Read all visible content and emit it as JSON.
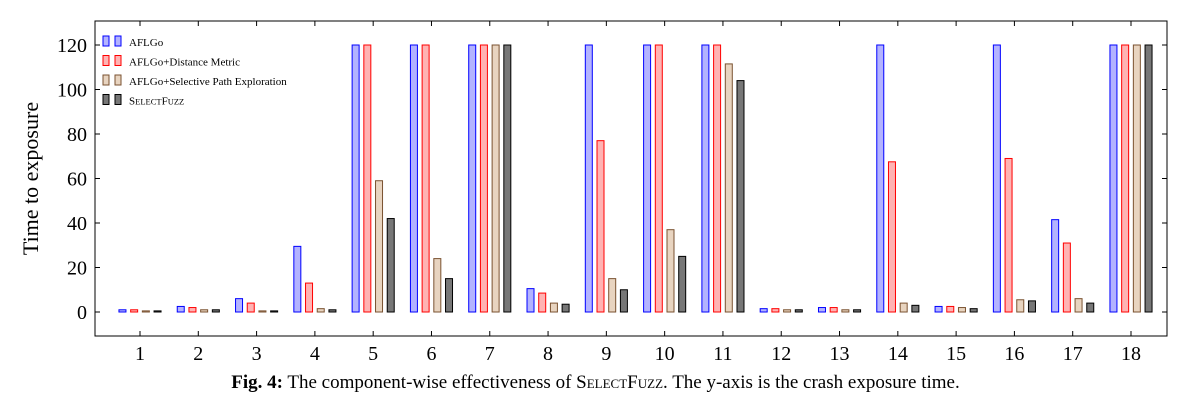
{
  "chart_data": {
    "type": "bar",
    "ylabel": "Time to exposure",
    "xlabel": "",
    "ylim": [
      0,
      120
    ],
    "yticks": [
      0,
      20,
      40,
      60,
      80,
      100,
      120
    ],
    "grid": false,
    "legend_position": "top-left",
    "categories": [
      "1",
      "2",
      "3",
      "4",
      "5",
      "6",
      "7",
      "8",
      "9",
      "10",
      "11",
      "12",
      "13",
      "14",
      "15",
      "16",
      "17",
      "18"
    ],
    "series": [
      {
        "name": "AFLGo",
        "color": "#b3b3ff",
        "stroke": "#0000ff",
        "values": [
          1,
          2.5,
          6,
          29.5,
          120,
          120,
          120,
          10.5,
          120,
          120,
          120,
          1.5,
          2,
          120,
          2.5,
          120,
          41.5,
          120
        ]
      },
      {
        "name": "AFLGo+Distance Metric",
        "color": "#ffb3b3",
        "stroke": "#ff0000",
        "values": [
          1,
          2,
          4,
          13,
          120,
          120,
          120,
          8.5,
          77,
          120,
          120,
          1.5,
          2,
          67.5,
          2.5,
          69,
          31,
          120
        ]
      },
      {
        "name": "AFLGo+Selective Path Exploration",
        "color": "#e8d4c0",
        "stroke": "#7a5230",
        "values": [
          0.5,
          1,
          0.5,
          1.5,
          59,
          24,
          120,
          4,
          15,
          37,
          111.5,
          1,
          1,
          4,
          2,
          5.5,
          6,
          120
        ]
      },
      {
        "name": "SelectFuzz",
        "name_prefix": "S",
        "name_sc1": "elect",
        "name_mid": "F",
        "name_sc2": "uzz",
        "color": "#777777",
        "stroke": "#000000",
        "values": [
          0.5,
          1,
          0.5,
          1,
          42,
          15,
          120,
          3.5,
          10,
          25,
          104,
          1,
          1,
          3,
          1.5,
          5,
          4,
          120
        ]
      }
    ]
  },
  "caption": {
    "label": "Fig. 4:",
    "text_before": "The component-wise effectiveness of ",
    "name_s": "S",
    "name_elect": "elect",
    "name_f": "F",
    "name_uzz": "uzz",
    "text_after": ". The y-axis is the crash exposure time."
  }
}
